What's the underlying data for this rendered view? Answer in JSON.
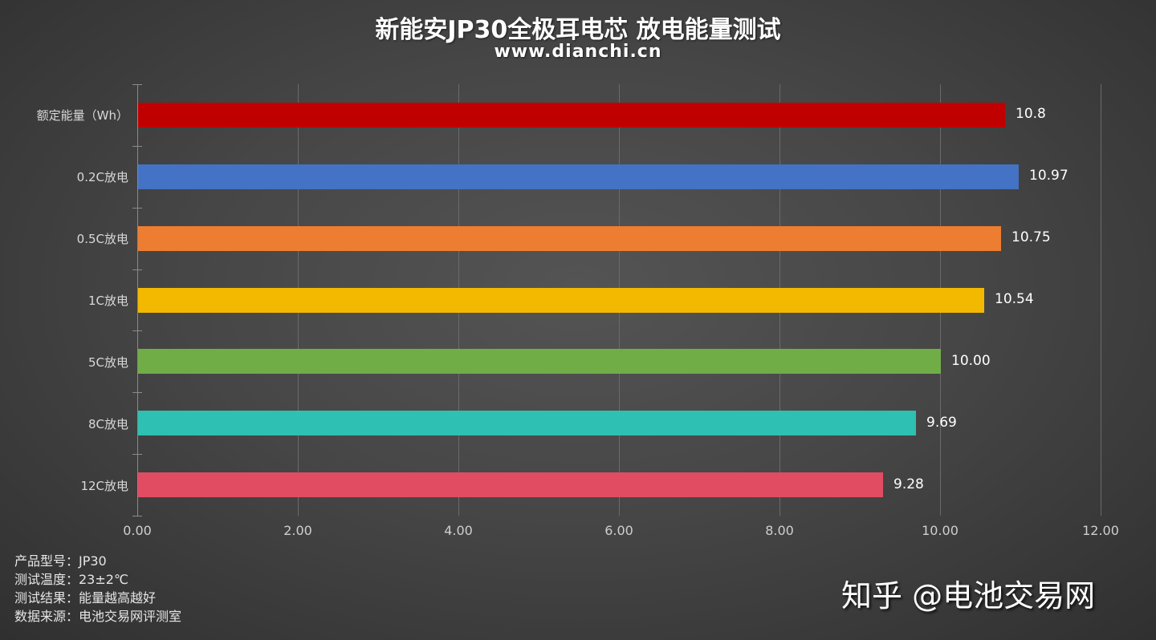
{
  "header": {
    "title": "新能安JP30全极耳电芯 放电能量测试",
    "subtitle": "www.dianchi.cn"
  },
  "chart_data": {
    "type": "bar",
    "orientation": "horizontal",
    "title": "新能安JP30全极耳电芯 放电能量测试",
    "subtitle": "www.dianchi.cn",
    "xlabel": "",
    "ylabel": "",
    "xlim": [
      0,
      12
    ],
    "xticks": [
      "0.00",
      "2.00",
      "4.00",
      "6.00",
      "8.00",
      "10.00",
      "12.00"
    ],
    "grid": "vertical",
    "legend": "none",
    "categories": [
      "额定能量（Wh）",
      "0.2C放电",
      "0.5C放电",
      "1C放电",
      "5C放电",
      "8C放电",
      "12C放电"
    ],
    "values": [
      10.8,
      10.97,
      10.75,
      10.54,
      10.0,
      9.69,
      9.28
    ],
    "value_labels": [
      "10.8",
      "10.97",
      "10.75",
      "10.54",
      "10.00",
      "9.69",
      "9.28"
    ],
    "colors": [
      "#c00000",
      "#4472c4",
      "#ed7d31",
      "#f2b900",
      "#70ad47",
      "#2ec0b2",
      "#e14c62"
    ]
  },
  "info": {
    "rows": [
      "产品型号：JP30",
      "测试温度：23±2℃",
      "测试结果：能量越高越好",
      "数据来源：电池交易网评测室"
    ]
  },
  "watermark": "知乎 @电池交易网"
}
